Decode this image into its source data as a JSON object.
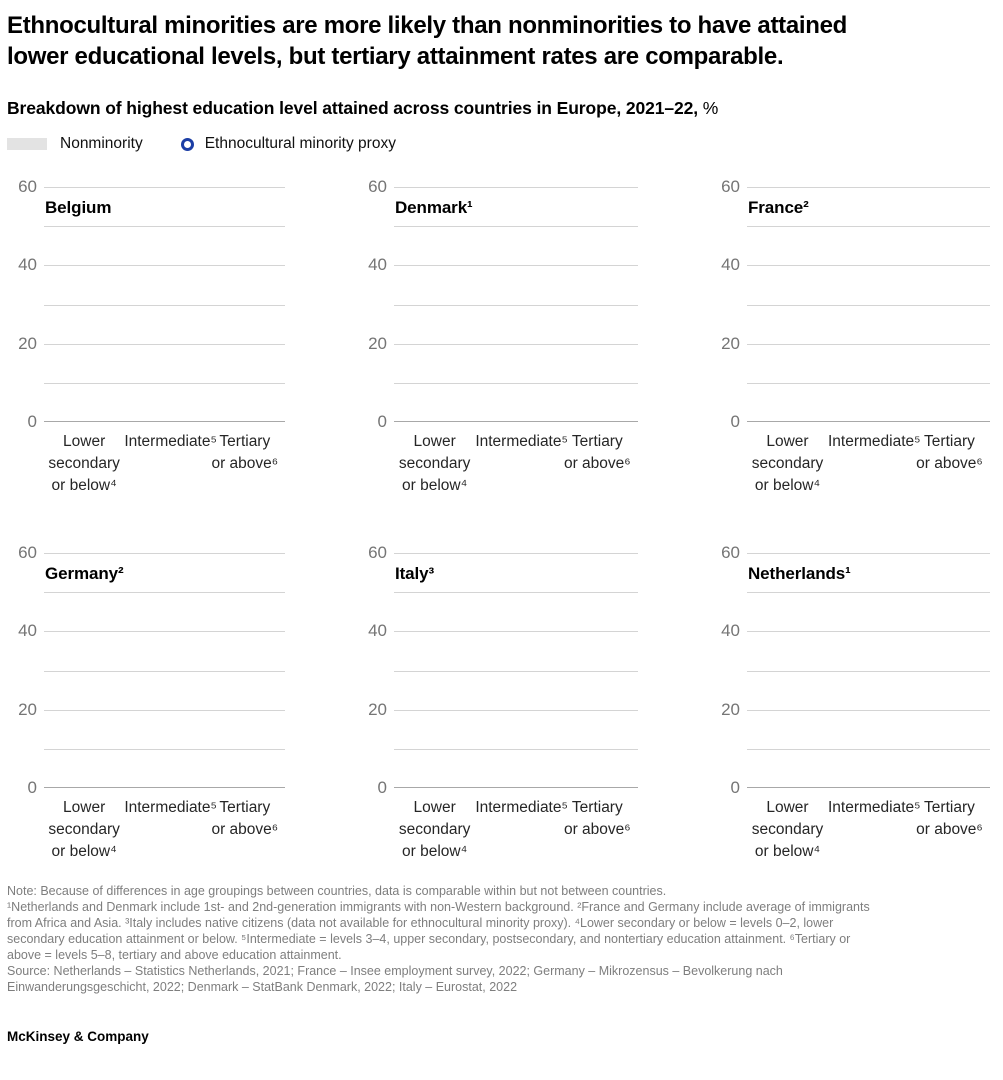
{
  "header": {
    "title": "Ethnocultural minorities are more likely than nonminorities to have attained\nlower educational levels, but tertiary attainment rates are comparable.",
    "subtitle": "Breakdown of highest education level attained across countries in Europe, 2021–22,",
    "subtitle_suffix": " %"
  },
  "legend": {
    "nonminority": {
      "label": "Nonminority",
      "swatch_color": "#e3e3e3"
    },
    "minority": {
      "label": "Ethnocultural minority proxy",
      "ring_color": "#1c3ea5"
    }
  },
  "axis": {
    "yticks": [
      "60",
      "40",
      "20",
      "0"
    ],
    "categories": [
      "Lower\nsecondary\nor below⁴",
      "Intermediate⁵",
      "Tertiary\nor above⁶"
    ]
  },
  "charts": [
    {
      "title": "Belgium"
    },
    {
      "title": "Denmark¹"
    },
    {
      "title": "France²"
    },
    {
      "title": "Germany²"
    },
    {
      "title": "Italy³"
    },
    {
      "title": "Netherlands¹"
    }
  ],
  "notes": {
    "note": "Note: Because of differences in age groupings between countries, data is comparable within but not between countries.",
    "footnotes": "¹Netherlands and Denmark include 1st- and 2nd-generation immigrants with non-Western background. ²France and Germany include average of immigrants\nfrom Africa and Asia. ³Italy includes native citizens (data not available for ethnocultural minority proxy). ⁴Lower secondary or below = levels 0–2, lower\nsecondary education attainment or below. ⁵Intermediate = levels 3–4, upper secondary, postsecondary, and nontertiary education attainment. ⁶Tertiary or\nabove = levels 5–8, tertiary and above education attainment.",
    "source": "Source: Netherlands – Statistics Netherlands, 2021; France – Insee employment survey, 2022; Germany – Mikrozensus – Bevolkerung nach\nEinwanderungsgeschicht, 2022; Denmark – StatBank Denmark, 2022; Italy – Eurostat, 2022"
  },
  "footer": {
    "brand": "McKinsey & Company"
  },
  "colors": {
    "accent_blue": "#1c3ea5",
    "swatch_gray": "#e3e3e3",
    "gridline": "#d4d4d4",
    "baseline": "#a8a8a8",
    "tick_gray": "#757575",
    "note_gray": "#7e7e7e"
  },
  "chart_data": [
    {
      "type": "bar",
      "title": "Belgium",
      "categories": [
        "Lower secondary or below⁴",
        "Intermediate⁵",
        "Tertiary or above⁶"
      ],
      "series": [
        {
          "name": "Nonminority",
          "values": [
            null,
            null,
            null
          ]
        },
        {
          "name": "Ethnocultural minority proxy",
          "values": [
            null,
            null,
            null
          ]
        }
      ],
      "ylim": [
        0,
        60
      ],
      "yticks": [
        0,
        20,
        40,
        60
      ],
      "gridline_step": 10,
      "grid": "horizontal only",
      "legend_position": "top-left above panels",
      "note": "panel renders axes and gridlines only; no data points visible in screenshot"
    },
    {
      "type": "bar",
      "title": "Denmark¹",
      "categories": [
        "Lower secondary or below⁴",
        "Intermediate⁵",
        "Tertiary or above⁶"
      ],
      "series": [
        {
          "name": "Nonminority",
          "values": [
            null,
            null,
            null
          ]
        },
        {
          "name": "Ethnocultural minority proxy",
          "values": [
            null,
            null,
            null
          ]
        }
      ],
      "ylim": [
        0,
        60
      ],
      "yticks": [
        0,
        20,
        40,
        60
      ],
      "gridline_step": 10,
      "grid": "horizontal only",
      "legend_position": "top-left above panels",
      "note": "panel renders axes and gridlines only; no data points visible in screenshot"
    },
    {
      "type": "bar",
      "title": "France²",
      "categories": [
        "Lower secondary or below⁴",
        "Intermediate⁵",
        "Tertiary or above⁶"
      ],
      "series": [
        {
          "name": "Nonminority",
          "values": [
            null,
            null,
            null
          ]
        },
        {
          "name": "Ethnocultural minority proxy",
          "values": [
            null,
            null,
            null
          ]
        }
      ],
      "ylim": [
        0,
        60
      ],
      "yticks": [
        0,
        20,
        40,
        60
      ],
      "gridline_step": 10,
      "grid": "horizontal only",
      "legend_position": "top-left above panels",
      "note": "panel renders axes and gridlines only; no data points visible in screenshot"
    },
    {
      "type": "bar",
      "title": "Germany²",
      "categories": [
        "Lower secondary or below⁴",
        "Intermediate⁵",
        "Tertiary or above⁶"
      ],
      "series": [
        {
          "name": "Nonminority",
          "values": [
            null,
            null,
            null
          ]
        },
        {
          "name": "Ethnocultural minority proxy",
          "values": [
            null,
            null,
            null
          ]
        }
      ],
      "ylim": [
        0,
        60
      ],
      "yticks": [
        0,
        20,
        40,
        60
      ],
      "gridline_step": 10,
      "grid": "horizontal only",
      "legend_position": "top-left above panels",
      "note": "panel renders axes and gridlines only; no data points visible in screenshot"
    },
    {
      "type": "bar",
      "title": "Italy³",
      "categories": [
        "Lower secondary or below⁴",
        "Intermediate⁵",
        "Tertiary or above⁶"
      ],
      "series": [
        {
          "name": "Nonminority",
          "values": [
            null,
            null,
            null
          ]
        },
        {
          "name": "Ethnocultural minority proxy",
          "values": [
            null,
            null,
            null
          ]
        }
      ],
      "ylim": [
        0,
        60
      ],
      "yticks": [
        0,
        20,
        40,
        60
      ],
      "gridline_step": 10,
      "grid": "horizontal only",
      "legend_position": "top-left above panels",
      "note": "panel renders axes and gridlines only; no data points visible in screenshot"
    },
    {
      "type": "bar",
      "title": "Netherlands¹",
      "categories": [
        "Lower secondary or below⁴",
        "Intermediate⁵",
        "Tertiary or above⁶"
      ],
      "series": [
        {
          "name": "Nonminority",
          "values": [
            null,
            null,
            null
          ]
        },
        {
          "name": "Ethnocultural minority proxy",
          "values": [
            null,
            null,
            null
          ]
        }
      ],
      "ylim": [
        0,
        60
      ],
      "yticks": [
        0,
        20,
        40,
        60
      ],
      "gridline_step": 10,
      "grid": "horizontal only",
      "legend_position": "top-left above panels",
      "note": "panel renders axes and gridlines only; no data points visible in screenshot"
    }
  ]
}
